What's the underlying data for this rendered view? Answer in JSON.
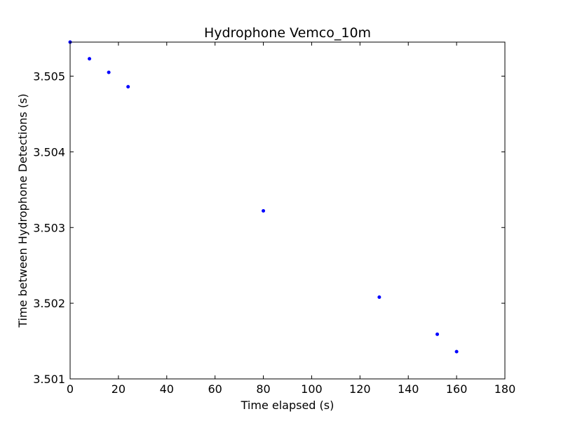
{
  "chart_data": {
    "type": "scatter",
    "title": "Hydrophone Vemco_10m",
    "xlabel": "Time elapsed (s)",
    "ylabel": "Time between Hydrophone Detections (s)",
    "xlim": [
      0,
      180
    ],
    "ylim": [
      3.501,
      3.50545
    ],
    "xticks": [
      "0",
      "20",
      "40",
      "60",
      "80",
      "100",
      "120",
      "140",
      "160",
      "180"
    ],
    "yticks": [
      "3.501",
      "3.502",
      "3.503",
      "3.504",
      "3.505"
    ],
    "grid": false,
    "legend": "none",
    "series": [
      {
        "color": "#0000ff",
        "points": [
          {
            "x": 0,
            "y": 3.50545
          },
          {
            "x": 8,
            "y": 3.50523
          },
          {
            "x": 16,
            "y": 3.50505
          },
          {
            "x": 24,
            "y": 3.50486
          },
          {
            "x": 80,
            "y": 3.50322
          },
          {
            "x": 128,
            "y": 3.50208
          },
          {
            "x": 152,
            "y": 3.50159
          },
          {
            "x": 160,
            "y": 3.50136
          }
        ]
      }
    ]
  }
}
